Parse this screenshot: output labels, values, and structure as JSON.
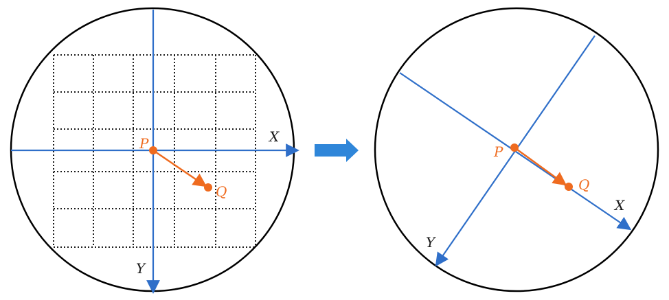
{
  "colors": {
    "background": "#ffffff",
    "circle": "#000000",
    "grid": "#1a1a1a",
    "axis": "#2f6fc9",
    "vector": "#ef6b1f",
    "transition_arrow": "#2f86d9"
  },
  "icons": {
    "transition": "right-arrow-icon"
  },
  "left_panel": {
    "x_label": "X",
    "y_label": "Y",
    "p_label": "P",
    "q_label": "Q"
  },
  "right_panel": {
    "x_label": "X",
    "y_label": "Y",
    "p_label": "P",
    "q_label": "Q"
  }
}
